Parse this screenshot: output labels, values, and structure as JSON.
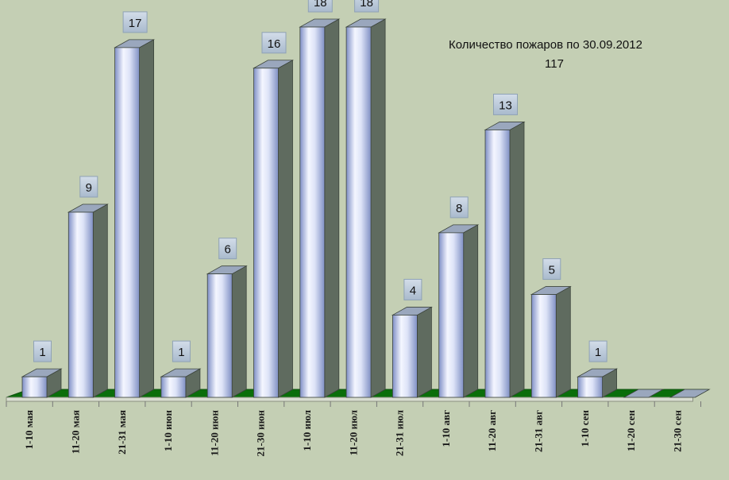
{
  "chart_data": {
    "type": "bar",
    "title": "Количество пожаров по 30.09.2012",
    "subtitle": "117",
    "categories": [
      "1-10   мая",
      "11-20 мая",
      "21-31 мая",
      "1-10   июн",
      "11-20 июн",
      "21-30 июн",
      "1-10   июл",
      "11-20 июл",
      "21-31 июл",
      "1-10     авг",
      "11-20   авг",
      "21-31   авг",
      "1-10    сен",
      "11-20 сен",
      "21-30 сен"
    ],
    "values": [
      1,
      9,
      17,
      1,
      6,
      16,
      18,
      18,
      4,
      8,
      13,
      5,
      1,
      0,
      0
    ],
    "data_labels": [
      "1",
      "9",
      "17",
      "1",
      "6",
      "16",
      "18",
      "18",
      "4",
      "8",
      "13",
      "5",
      "1",
      "",
      ""
    ],
    "ylim": [
      0,
      18
    ],
    "grid": false,
    "legend": "none",
    "colors": {
      "background": "#c4cfb4",
      "floor": "#0a6e0a",
      "bar_side": "#5f6b5f",
      "bar_top": "#9aa7bd",
      "bar_face_light": "#f4f6ff",
      "bar_face_dark": "#8292c8",
      "label_box": "#b7c6d8"
    }
  }
}
